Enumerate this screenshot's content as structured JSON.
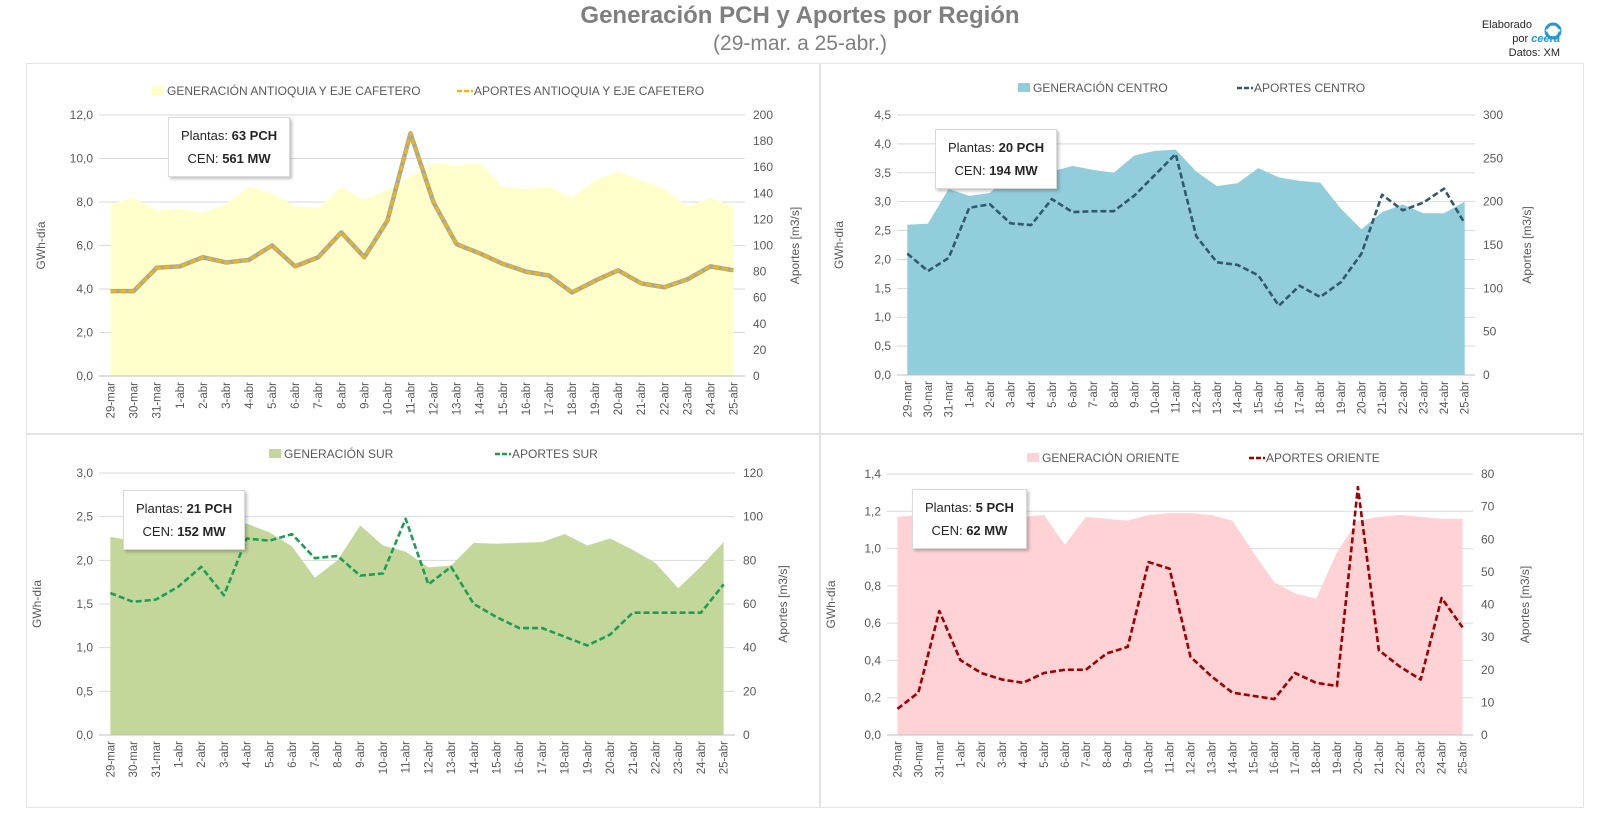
{
  "header": {
    "title": "Generación PCH y Aportes por Región",
    "subtitle": "(29-mar. a 25-abr.)"
  },
  "branding": {
    "line1": "Elaborado",
    "line2": "por",
    "logo_text": "ceera",
    "source": "Datos: XM"
  },
  "colors": {
    "antioquia_fill": "#ffffcc",
    "antioquia_line": "#f2b800",
    "centro_fill": "#92cddc",
    "centro_line": "#31596c",
    "sur_fill": "#c4d79b",
    "sur_line": "#1e9e55",
    "oriente_fill": "#ffd2d6",
    "oriente_line": "#a00000"
  },
  "chart_data": [
    {
      "type": "area",
      "panel": "antioquia",
      "categories": [
        "29-mar",
        "30-mar",
        "31-mar",
        "1-abr",
        "2-abr",
        "3-abr",
        "4-abr",
        "5-abr",
        "6-abr",
        "7-abr",
        "8-abr",
        "9-abr",
        "10-abr",
        "11-abr",
        "12-abr",
        "13-abr",
        "14-abr",
        "15-abr",
        "16-abr",
        "17-abr",
        "18-abr",
        "19-abr",
        "20-abr",
        "21-abr",
        "22-abr",
        "23-abr",
        "24-abr",
        "25-abr"
      ],
      "series": [
        {
          "name": "GENERACIÓN ANTIOQUIA Y EJE CAFETERO",
          "kind": "area",
          "axis": "left",
          "values": [
            7.9,
            8.2,
            7.6,
            7.7,
            7.5,
            7.9,
            8.7,
            8.4,
            7.8,
            7.7,
            8.7,
            8.1,
            8.6,
            9.2,
            9.8,
            9.7,
            9.8,
            8.7,
            8.6,
            8.7,
            8.2,
            9.0,
            9.4,
            9.0,
            8.6,
            7.8,
            8.2,
            7.8
          ]
        },
        {
          "name": "APORTES ANTIOQUIA Y EJE CAFETERO",
          "kind": "line",
          "axis": "right",
          "values": [
            65,
            65,
            83,
            84,
            91,
            87,
            89,
            100,
            84,
            91,
            110,
            91,
            119,
            186,
            133,
            101,
            94,
            86,
            80,
            77,
            64,
            73,
            81,
            71,
            68,
            74,
            84,
            81
          ]
        }
      ],
      "ylabel": "GWh-día",
      "y2label": "Aportes [m3/s]",
      "yticks": [
        "0,0",
        "2,0",
        "4,0",
        "6,0",
        "8,0",
        "10,0",
        "12,0"
      ],
      "y2ticks": [
        "0",
        "20",
        "40",
        "60",
        "80",
        "100",
        "120",
        "140",
        "160",
        "180",
        "200"
      ],
      "ylim": [
        0,
        12
      ],
      "y2lim": [
        0,
        200
      ],
      "info": {
        "plantas_label": "Plantas:",
        "plantas_value": "63 PCH",
        "cen_label": "CEN:",
        "cen_value": "561 MW"
      }
    },
    {
      "type": "area",
      "panel": "centro",
      "categories": [
        "29-mar",
        "30-mar",
        "31-mar",
        "1-abr",
        "2-abr",
        "3-abr",
        "4-abr",
        "5-abr",
        "6-abr",
        "7-abr",
        "8-abr",
        "9-abr",
        "10-abr",
        "11-abr",
        "12-abr",
        "13-abr",
        "14-abr",
        "15-abr",
        "16-abr",
        "17-abr",
        "18-abr",
        "19-abr",
        "20-abr",
        "21-abr",
        "22-abr",
        "23-abr",
        "24-abr",
        "25-abr"
      ],
      "series": [
        {
          "name": "GENERACIÓN CENTRO",
          "kind": "area",
          "axis": "left",
          "values": [
            2.6,
            2.62,
            3.22,
            3.1,
            3.15,
            3.48,
            3.25,
            3.52,
            3.62,
            3.55,
            3.5,
            3.8,
            3.88,
            3.9,
            3.52,
            3.27,
            3.32,
            3.58,
            3.42,
            3.36,
            3.33,
            2.88,
            2.52,
            2.82,
            2.95,
            2.8,
            2.8,
            3.0
          ]
        },
        {
          "name": "APORTES CENTRO",
          "kind": "line",
          "axis": "right",
          "values": [
            140,
            120,
            135,
            193,
            197,
            175,
            173,
            203,
            188,
            189,
            189,
            207,
            231,
            255,
            160,
            130,
            127,
            115,
            80,
            103,
            90,
            107,
            140,
            208,
            190,
            199,
            215,
            175
          ]
        }
      ],
      "ylabel": "GWh-día",
      "y2label": "Aportes [m3/s]",
      "yticks": [
        "0,0",
        "0,5",
        "1,0",
        "1,5",
        "2,0",
        "2,5",
        "3,0",
        "3,5",
        "4,0",
        "4,5"
      ],
      "y2ticks": [
        "0",
        "50",
        "100",
        "150",
        "200",
        "250",
        "300"
      ],
      "ylim": [
        0,
        4.5
      ],
      "y2lim": [
        0,
        300
      ],
      "info": {
        "plantas_label": "Plantas:",
        "plantas_value": "20 PCH",
        "cen_label": "CEN:",
        "cen_value": "194 MW"
      }
    },
    {
      "type": "area",
      "panel": "sur",
      "categories": [
        "29-mar",
        "30-mar",
        "31-mar",
        "1-abr",
        "2-abr",
        "3-abr",
        "4-abr",
        "5-abr",
        "6-abr",
        "7-abr",
        "8-abr",
        "9-abr",
        "10-abr",
        "11-abr",
        "12-abr",
        "13-abr",
        "14-abr",
        "15-abr",
        "16-abr",
        "17-abr",
        "18-abr",
        "19-abr",
        "20-abr",
        "21-abr",
        "22-abr",
        "23-abr",
        "24-abr",
        "25-abr"
      ],
      "series": [
        {
          "name": "GENERACIÓN SUR",
          "kind": "area",
          "axis": "left",
          "values": [
            2.27,
            2.22,
            2.28,
            2.32,
            2.46,
            2.43,
            2.42,
            2.32,
            2.16,
            1.8,
            2.0,
            2.4,
            2.17,
            2.1,
            1.92,
            1.94,
            2.2,
            2.19,
            2.2,
            2.21,
            2.3,
            2.17,
            2.25,
            2.12,
            1.97,
            1.68,
            1.93,
            2.21
          ]
        },
        {
          "name": "APORTES SUR",
          "kind": "line",
          "axis": "right",
          "values": [
            65,
            61,
            62,
            68,
            77,
            64,
            90,
            89,
            92,
            81,
            82,
            73,
            74,
            99,
            69,
            77,
            60,
            54,
            49,
            49,
            45,
            41,
            46,
            56,
            56,
            56,
            56,
            69
          ]
        }
      ],
      "ylabel": "GWh-día",
      "y2label": "Aportes [m3/s]",
      "yticks": [
        "0,0",
        "0,5",
        "1,0",
        "1,5",
        "2,0",
        "2,5",
        "3,0"
      ],
      "y2ticks": [
        "0",
        "20",
        "40",
        "60",
        "80",
        "100",
        "120"
      ],
      "ylim": [
        0,
        3
      ],
      "y2lim": [
        0,
        120
      ],
      "info": {
        "plantas_label": "Plantas:",
        "plantas_value": "21 PCH",
        "cen_label": "CEN:",
        "cen_value": "152 MW"
      }
    },
    {
      "type": "area",
      "panel": "oriente",
      "categories": [
        "29-mar",
        "30-mar",
        "31-mar",
        "1-abr",
        "2-abr",
        "3-abr",
        "4-abr",
        "5-abr",
        "6-abr",
        "7-abr",
        "8-abr",
        "9-abr",
        "10-abr",
        "11-abr",
        "12-abr",
        "13-abr",
        "14-abr",
        "15-abr",
        "16-abr",
        "17-abr",
        "18-abr",
        "19-abr",
        "20-abr",
        "21-abr",
        "22-abr",
        "23-abr",
        "24-abr",
        "25-abr"
      ],
      "series": [
        {
          "name": "GENERACIÓN ORIENTE",
          "kind": "area",
          "axis": "left",
          "values": [
            1.17,
            1.18,
            1.17,
            1.16,
            1.15,
            1.16,
            1.17,
            1.18,
            1.02,
            1.17,
            1.16,
            1.15,
            1.18,
            1.19,
            1.19,
            1.18,
            1.15,
            0.98,
            0.82,
            0.76,
            0.73,
            0.98,
            1.15,
            1.17,
            1.18,
            1.17,
            1.16,
            1.16
          ]
        },
        {
          "name": "APORTES ORIENTE",
          "kind": "line",
          "axis": "right",
          "values": [
            8,
            13,
            38,
            23,
            19,
            17,
            16,
            19,
            20,
            20,
            25,
            27,
            53,
            51,
            24,
            18,
            13,
            12,
            11,
            19,
            16,
            15,
            76,
            26,
            21,
            17,
            42,
            33
          ]
        }
      ],
      "ylabel": "GWh-día",
      "y2label": "Aportes [m3/s]",
      "yticks": [
        "0,0",
        "0,2",
        "0,4",
        "0,6",
        "0,8",
        "1,0",
        "1,2",
        "1,4"
      ],
      "y2ticks": [
        "0",
        "10",
        "20",
        "30",
        "40",
        "50",
        "60",
        "70",
        "80"
      ],
      "ylim": [
        0,
        1.4
      ],
      "y2lim": [
        0,
        80
      ],
      "info": {
        "plantas_label": "Plantas:",
        "plantas_value": "5 PCH",
        "cen_label": "CEN:",
        "cen_value": "62 MW"
      }
    }
  ]
}
